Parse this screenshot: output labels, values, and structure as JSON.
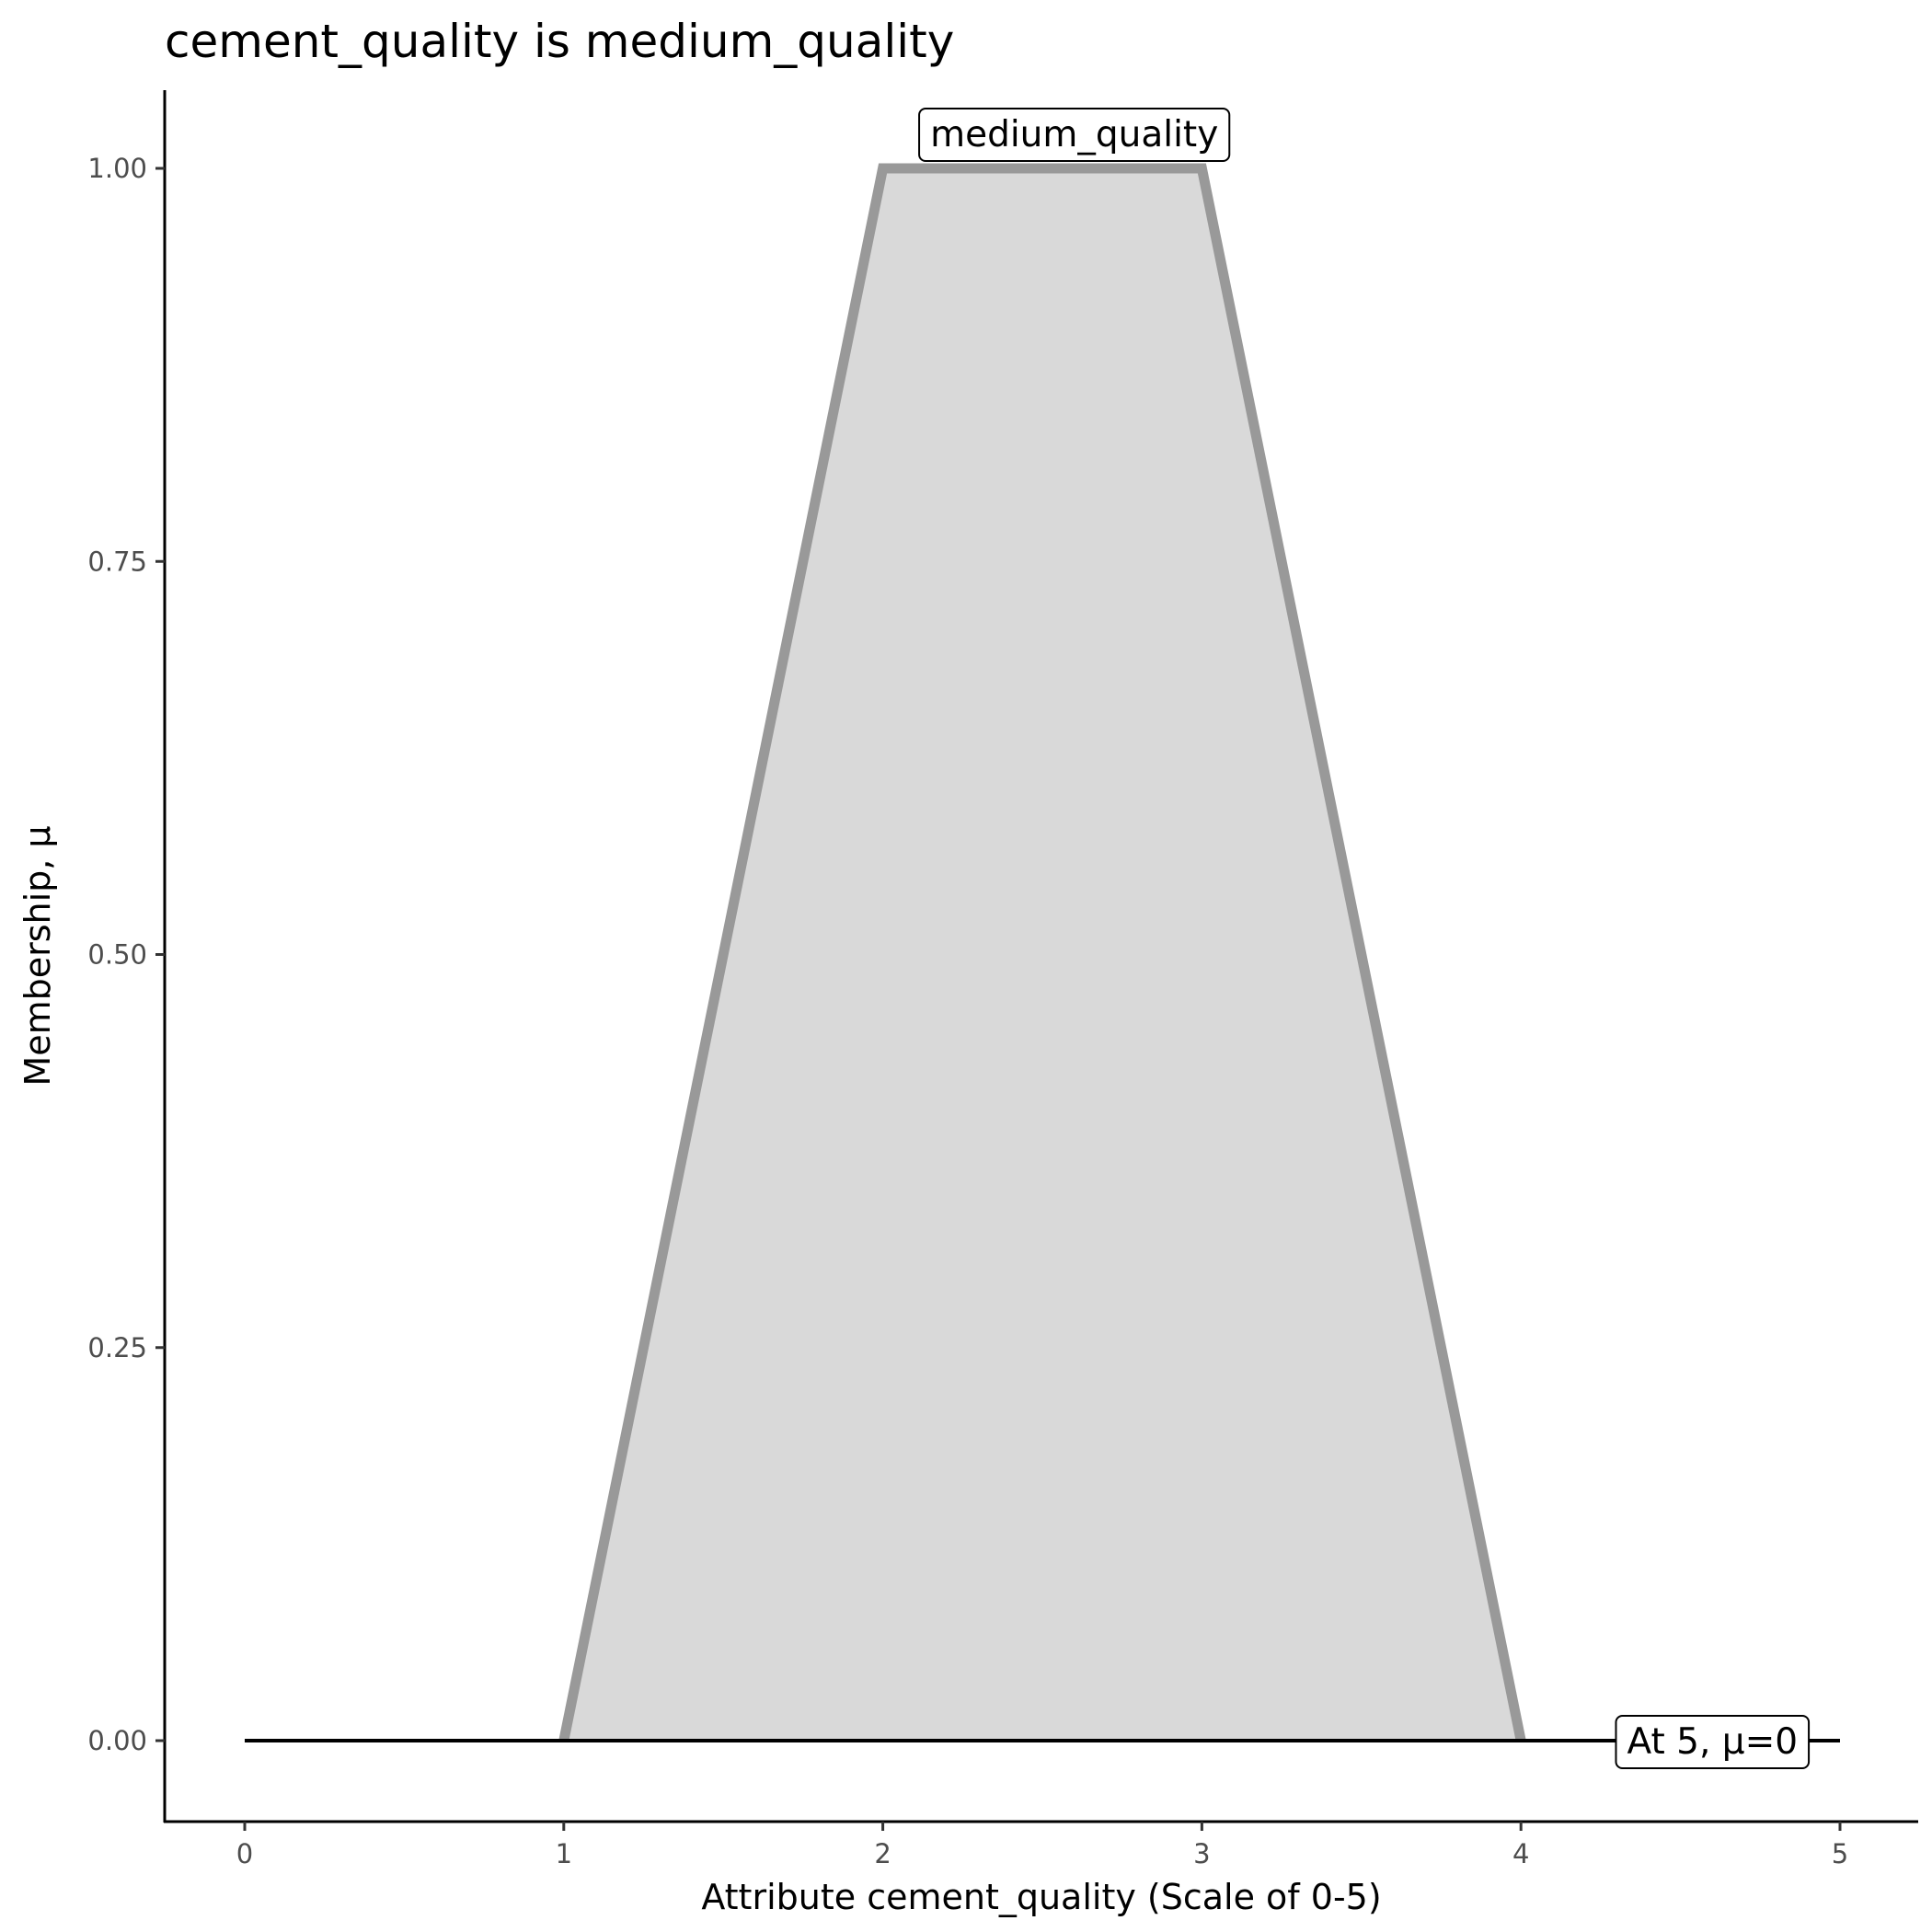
{
  "chart_data": {
    "type": "area",
    "title": "cement_quality is medium_quality",
    "xlabel": "Attribute cement_quality (Scale of 0-5)",
    "ylabel": "Membership, μ",
    "xlim": [
      -0.25,
      5.25
    ],
    "ylim": [
      -0.05,
      1.05
    ],
    "x_ticks": [
      "0",
      "1",
      "2",
      "3",
      "4",
      "5"
    ],
    "y_ticks": [
      "0.00",
      "0.25",
      "0.50",
      "0.75",
      "1.00"
    ],
    "grid": false,
    "series": [
      {
        "name": "medium_quality",
        "x": [
          1,
          2,
          3,
          4
        ],
        "y": [
          0,
          1,
          1,
          0
        ],
        "fill": "#d9d9d9",
        "stroke": "#999999"
      }
    ],
    "baseline": {
      "x": [
        0,
        5
      ],
      "y": [
        0,
        0
      ],
      "color": "#000000"
    },
    "annotations": [
      {
        "text": "medium_quality",
        "x": 2.6,
        "y": 1.0
      },
      {
        "text": "At 5, μ=0",
        "x": 4.6,
        "y": 0.0
      }
    ]
  }
}
